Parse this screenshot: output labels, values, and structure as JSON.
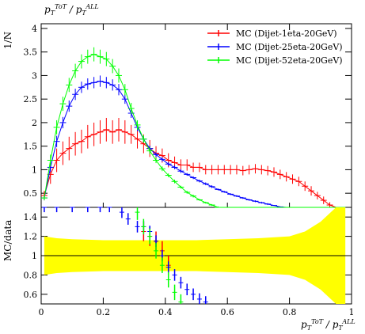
{
  "chart_data": [
    {
      "type": "line",
      "panel": "main",
      "title": "p_T^{ToT} / p_T^{ALL}",
      "ylabel": "1/N",
      "xlim": [
        0,
        1
      ],
      "ylim": [
        0.2,
        4.1
      ],
      "yticks": [
        0.5,
        1,
        1.5,
        2,
        2.5,
        3,
        3.5,
        4
      ],
      "ytick_labels": [
        "0.5",
        "1",
        "1.5",
        "2",
        "2.5",
        "3",
        "3.5",
        "4"
      ],
      "legend": "top-right",
      "x": [
        0.01,
        0.03,
        0.05,
        0.07,
        0.09,
        0.11,
        0.13,
        0.15,
        0.17,
        0.19,
        0.21,
        0.23,
        0.25,
        0.27,
        0.29,
        0.31,
        0.33,
        0.35,
        0.37,
        0.39,
        0.41,
        0.43,
        0.45,
        0.47,
        0.49,
        0.51,
        0.53,
        0.55,
        0.57,
        0.59,
        0.61,
        0.63,
        0.65,
        0.67,
        0.69,
        0.71,
        0.73,
        0.75,
        0.77,
        0.79,
        0.81,
        0.83,
        0.85,
        0.87,
        0.89,
        0.91,
        0.93,
        0.95,
        0.97
      ],
      "series": [
        {
          "name": "MC (Dijet-1eta-20GeV)",
          "color": "#ff0000",
          "values": [
            0.45,
            0.9,
            1.2,
            1.35,
            1.45,
            1.55,
            1.6,
            1.7,
            1.75,
            1.8,
            1.85,
            1.8,
            1.85,
            1.8,
            1.75,
            1.65,
            1.55,
            1.45,
            1.35,
            1.3,
            1.2,
            1.15,
            1.1,
            1.1,
            1.05,
            1.05,
            1.0,
            1.0,
            1.0,
            1.0,
            1.0,
            1.0,
            0.98,
            1.0,
            1.02,
            1.0,
            0.98,
            0.95,
            0.9,
            0.85,
            0.8,
            0.75,
            0.65,
            0.55,
            0.45,
            0.35,
            0.25,
            0.15,
            0.1
          ],
          "errors": [
            0.1,
            0.2,
            0.25,
            0.25,
            0.25,
            0.25,
            0.25,
            0.25,
            0.25,
            0.25,
            0.25,
            0.25,
            0.25,
            0.25,
            0.2,
            0.2,
            0.2,
            0.18,
            0.15,
            0.15,
            0.15,
            0.13,
            0.12,
            0.12,
            0.1,
            0.1,
            0.1,
            0.1,
            0.1,
            0.1,
            0.1,
            0.1,
            0.1,
            0.1,
            0.1,
            0.1,
            0.1,
            0.1,
            0.1,
            0.1,
            0.1,
            0.1,
            0.1,
            0.1,
            0.08,
            0.08,
            0.06,
            0.05,
            0.05
          ]
        },
        {
          "name": "MC (Dijet-25eta-20GeV)",
          "color": "#0000ff",
          "values": [
            0.4,
            1.05,
            1.6,
            2.0,
            2.35,
            2.6,
            2.75,
            2.82,
            2.85,
            2.88,
            2.85,
            2.8,
            2.7,
            2.5,
            2.2,
            1.9,
            1.65,
            1.45,
            1.32,
            1.22,
            1.12,
            1.05,
            0.97,
            0.9,
            0.83,
            0.76,
            0.7,
            0.64,
            0.58,
            0.53,
            0.48,
            0.44,
            0.4,
            0.36,
            0.33,
            0.3,
            0.27,
            0.24,
            0.21,
            0.19,
            0.17,
            0.15,
            0.13,
            0.11,
            0.1,
            0.08,
            0.07,
            0.06,
            0.05
          ],
          "errors": [
            0.05,
            0.1,
            0.12,
            0.12,
            0.12,
            0.12,
            0.12,
            0.12,
            0.12,
            0.12,
            0.12,
            0.12,
            0.12,
            0.1,
            0.1,
            0.08,
            0.07,
            0.06,
            0.05,
            0.05,
            0.04,
            0.04,
            0.04,
            0.03,
            0.03,
            0.03,
            0.03,
            0.03,
            0.02,
            0.02,
            0.02,
            0.02,
            0.02,
            0.02,
            0.02,
            0.02,
            0.02,
            0.01,
            0.01,
            0.01,
            0.01,
            0.01,
            0.01,
            0.01,
            0.01,
            0.01,
            0.01,
            0.01,
            0.01
          ]
        },
        {
          "name": "MC (Dijet-52eta-20GeV)",
          "color": "#00ff00",
          "values": [
            0.4,
            1.2,
            1.9,
            2.4,
            2.8,
            3.1,
            3.3,
            3.4,
            3.45,
            3.4,
            3.35,
            3.2,
            3.0,
            2.7,
            2.3,
            1.95,
            1.65,
            1.4,
            1.2,
            1.02,
            0.88,
            0.75,
            0.63,
            0.52,
            0.44,
            0.36,
            0.3,
            0.25,
            0.2,
            0.16,
            0.13,
            0.1,
            0.08,
            0.06,
            0.05,
            0.04,
            0.03,
            0.02,
            0.02,
            0.01,
            0.01,
            0.01,
            0.0,
            0.0,
            0.0,
            0.0,
            0.0,
            0.0,
            0.0
          ],
          "errors": [
            0.05,
            0.12,
            0.15,
            0.15,
            0.15,
            0.15,
            0.15,
            0.15,
            0.15,
            0.15,
            0.15,
            0.15,
            0.15,
            0.12,
            0.12,
            0.1,
            0.08,
            0.07,
            0.06,
            0.05,
            0.04,
            0.04,
            0.03,
            0.03,
            0.03,
            0.02,
            0.02,
            0.02,
            0.02,
            0.01,
            0.01,
            0.01,
            0.01,
            0.01,
            0.01,
            0.0,
            0.0,
            0.0,
            0.0,
            0.0,
            0.0,
            0.0,
            0.0,
            0.0,
            0.0,
            0.0,
            0.0,
            0.0,
            0.0
          ]
        }
      ]
    },
    {
      "type": "line",
      "panel": "ratio",
      "ylabel": "MC/data",
      "xlabel": "p_T^{ToT} / p_T^{ALL}",
      "xlim": [
        0,
        1
      ],
      "ylim": [
        0.5,
        1.5
      ],
      "yticks": [
        0.6,
        0.8,
        1.0,
        1.2,
        1.4
      ],
      "ytick_labels": [
        "0.6",
        "0.8",
        "1",
        "1.2",
        "1.4"
      ],
      "xticks": [
        0,
        0.2,
        0.4,
        0.6,
        0.8,
        1.0
      ],
      "xtick_labels": [
        "0",
        "0.2",
        "0.4",
        "0.6",
        "0.8",
        "1"
      ],
      "reference_line": 1.0,
      "band": {
        "color": "#ffff00",
        "x": [
          0.01,
          0.05,
          0.1,
          0.2,
          0.3,
          0.4,
          0.5,
          0.6,
          0.7,
          0.8,
          0.85,
          0.9,
          0.95,
          0.98
        ],
        "half_width": [
          0.2,
          0.18,
          0.17,
          0.16,
          0.16,
          0.16,
          0.16,
          0.17,
          0.18,
          0.2,
          0.25,
          0.35,
          0.5,
          0.6
        ]
      },
      "series": [
        {
          "name": "MC (Dijet-1eta-20GeV)",
          "color": "#ff0000",
          "x": [
            0.33,
            0.35,
            0.37,
            0.39,
            0.41
          ],
          "values": [
            1.25,
            1.2,
            1.15,
            1.05,
            0.9
          ],
          "errors": [
            0.1,
            0.1,
            0.1,
            0.1,
            0.1
          ]
        },
        {
          "name": "MC (Dijet-25eta-20GeV)",
          "color": "#0000ff",
          "x": [
            0.01,
            0.05,
            0.1,
            0.15,
            0.19,
            0.22,
            0.26,
            0.28,
            0.31,
            0.33,
            0.35,
            0.37,
            0.39,
            0.41,
            0.43,
            0.45,
            0.47,
            0.49,
            0.51,
            0.53
          ],
          "values": [
            1.5,
            1.5,
            1.5,
            1.5,
            1.5,
            1.5,
            1.45,
            1.38,
            1.3,
            1.3,
            1.25,
            1.15,
            1.0,
            0.88,
            0.8,
            0.72,
            0.65,
            0.6,
            0.55,
            0.52
          ],
          "errors": [
            0.05,
            0.05,
            0.05,
            0.05,
            0.05,
            0.05,
            0.06,
            0.06,
            0.06,
            0.06,
            0.06,
            0.06,
            0.06,
            0.06,
            0.06,
            0.06,
            0.06,
            0.06,
            0.06,
            0.06
          ]
        },
        {
          "name": "MC (Dijet-52eta-20GeV)",
          "color": "#00ff00",
          "x": [
            0.31,
            0.33,
            0.35,
            0.37,
            0.39,
            0.41,
            0.43,
            0.45
          ],
          "values": [
            1.45,
            1.3,
            1.2,
            1.05,
            0.9,
            0.75,
            0.62,
            0.52
          ],
          "errors": [
            0.08,
            0.08,
            0.08,
            0.08,
            0.08,
            0.08,
            0.08,
            0.08
          ]
        }
      ]
    }
  ]
}
